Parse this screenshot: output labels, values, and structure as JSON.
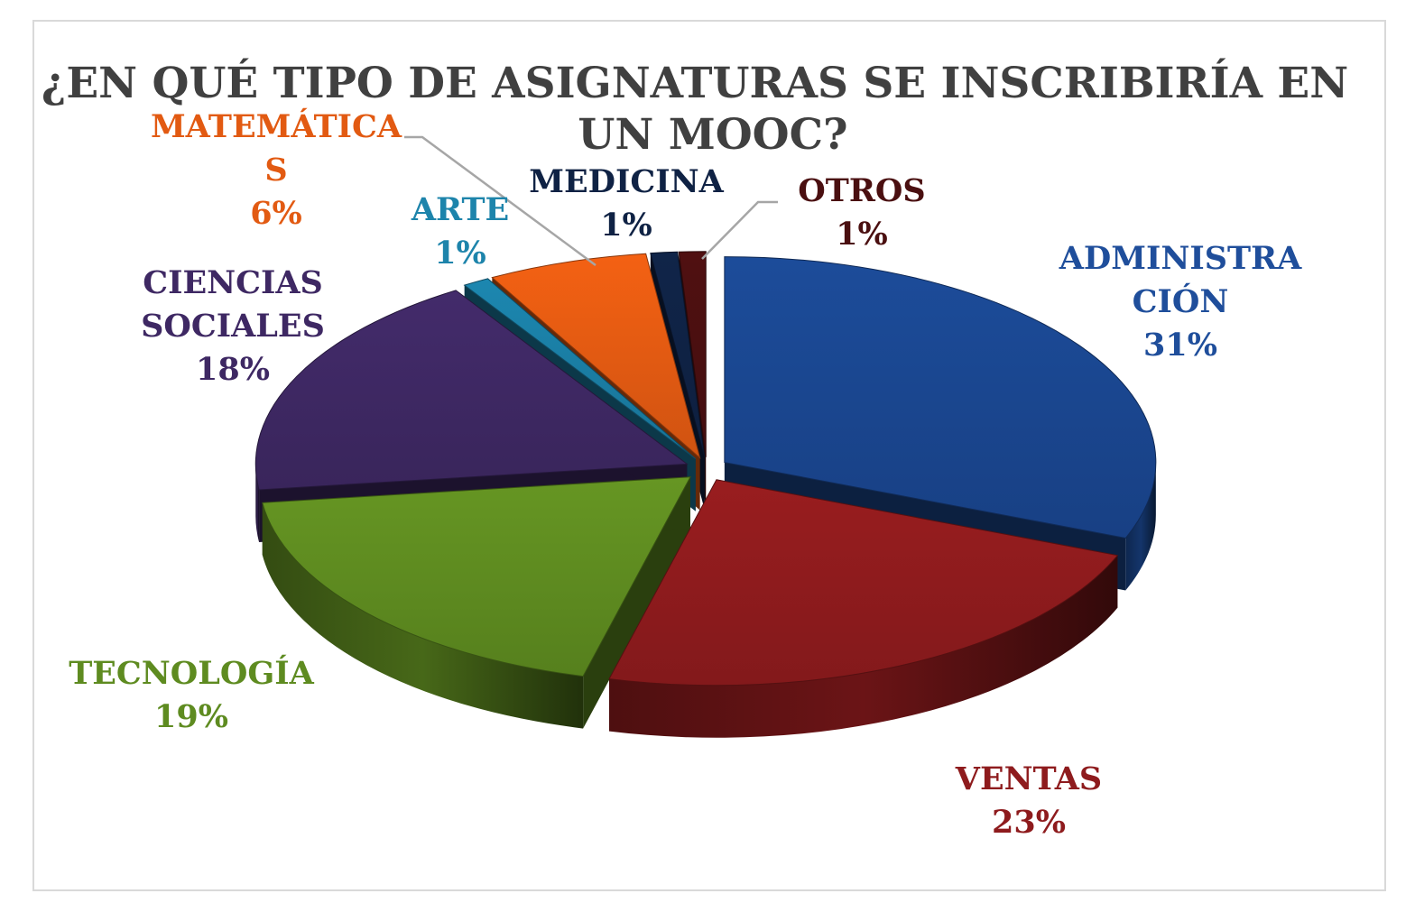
{
  "chart_data": {
    "type": "pie",
    "title_lines": [
      "¿EN QUÉ TIPO DE ASIGNATURAS SE INSCRIBIRÍA EN",
      "UN MOOC?"
    ],
    "style": "3d-exploded",
    "slices": [
      {
        "label_lines": [
          "ADMINISTRA",
          "CIÓN"
        ],
        "value": 31,
        "value_label": "31%",
        "color": "#1a468f",
        "label_color": "#1f4e9b"
      },
      {
        "label_lines": [
          "VENTAS"
        ],
        "value": 23,
        "value_label": "23%",
        "color": "#8e1b1d",
        "label_color": "#8e1b1d"
      },
      {
        "label_lines": [
          "TECNOLOGÍA"
        ],
        "value": 19,
        "value_label": "19%",
        "color": "#5e8b20",
        "label_color": "#5e8b20"
      },
      {
        "label_lines": [
          "CIENCIAS",
          "SOCIALES"
        ],
        "value": 18,
        "value_label": "18%",
        "color": "#3e2863",
        "label_color": "#3e2863"
      },
      {
        "label_lines": [
          "ARTE"
        ],
        "value": 1,
        "value_label": "1%",
        "color": "#1a7da3",
        "label_color": "#1d84ab"
      },
      {
        "label_lines": [
          "MATEMÁTICA",
          "S"
        ],
        "value": 6,
        "value_label": "6%",
        "color": "#e25a12",
        "label_color": "#e25a12"
      },
      {
        "label_lines": [
          "MEDICINA"
        ],
        "value": 1,
        "value_label": "1%",
        "color": "#0f2244",
        "label_color": "#0f2244"
      },
      {
        "label_lines": [
          "OTROS"
        ],
        "value": 1,
        "value_label": "1%",
        "color": "#4a0f10",
        "label_color": "#4a0f10"
      }
    ]
  }
}
